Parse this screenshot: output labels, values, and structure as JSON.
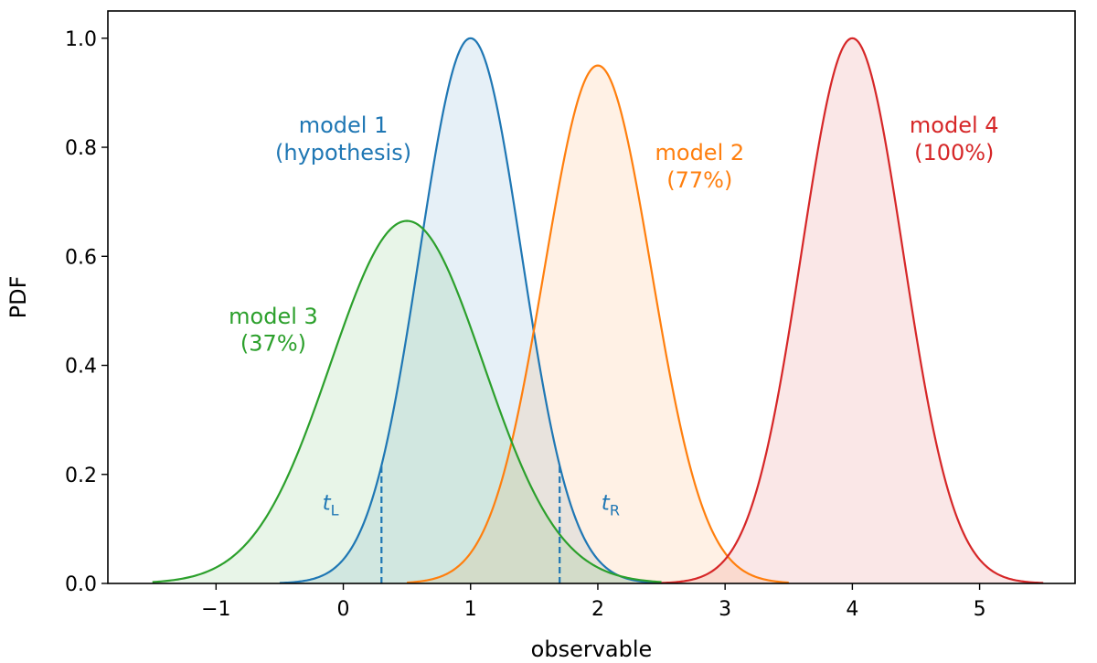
{
  "chart_data": {
    "type": "area",
    "title": "",
    "xlabel": "observable",
    "ylabel": "PDF",
    "xlim": [
      -1.85,
      5.75
    ],
    "ylim": [
      0,
      1.05
    ],
    "xticks": [
      -1,
      0,
      1,
      2,
      3,
      4,
      5
    ],
    "xtick_labels": [
      "−1",
      "0",
      "1",
      "2",
      "3",
      "4",
      "5"
    ],
    "yticks": [
      0.0,
      0.2,
      0.4,
      0.6,
      0.8,
      1.0
    ],
    "ytick_labels": [
      "0.0",
      "0.2",
      "0.4",
      "0.6",
      "0.8",
      "1.0"
    ],
    "grid": false,
    "legend": "none",
    "series": [
      {
        "key": "model1",
        "color": "#1f77b4",
        "mean": 1.0,
        "std": 0.4,
        "x_range": [
          -0.5,
          2.5
        ],
        "peak": 1.0
      },
      {
        "key": "model2",
        "color": "#ff7f0e",
        "mean": 2.0,
        "std": 0.42,
        "x_range": [
          0.5,
          3.5
        ],
        "peak": 0.95
      },
      {
        "key": "model3",
        "color": "#2ca02c",
        "mean": 0.5,
        "std": 0.6,
        "x_range": [
          -1.5,
          2.5
        ],
        "peak": 0.665
      },
      {
        "key": "model4",
        "color": "#d62728",
        "mean": 4.0,
        "std": 0.4,
        "x_range": [
          2.5,
          5.5
        ],
        "peak": 1.0
      }
    ],
    "annotations": [
      {
        "key": "model1",
        "color": "#1f77b4",
        "x": 0.0,
        "y_top": 0.84,
        "y_bottom": 0.79,
        "line1": "model 1",
        "line2": "(hypothesis)"
      },
      {
        "key": "model2",
        "color": "#ff7f0e",
        "x": 2.8,
        "y_top": 0.79,
        "y_bottom": 0.74,
        "line1": "model 2",
        "line2": "(77%)"
      },
      {
        "key": "model3",
        "color": "#2ca02c",
        "x": -0.55,
        "y_top": 0.49,
        "y_bottom": 0.44,
        "line1": "model 3",
        "line2": "(37%)"
      },
      {
        "key": "model4",
        "color": "#d62728",
        "x": 4.8,
        "y_top": 0.84,
        "y_bottom": 0.79,
        "line1": "model 4",
        "line2": "(100%)"
      }
    ],
    "thresholds": [
      {
        "key": "tL",
        "x": 0.3,
        "color": "#1f77b4",
        "label": "t",
        "subscript": "L",
        "label_x": -0.1,
        "label_y": 0.135
      },
      {
        "key": "tR",
        "x": 1.7,
        "color": "#1f77b4",
        "label": "t",
        "subscript": "R",
        "label_x": 2.1,
        "label_y": 0.135
      }
    ]
  }
}
